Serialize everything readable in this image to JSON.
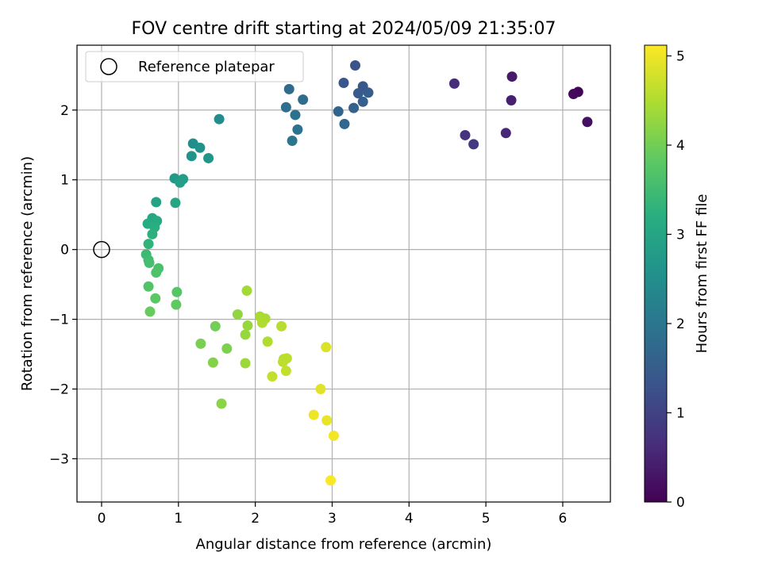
{
  "chart_data": {
    "type": "scatter",
    "title": "FOV centre drift starting at 2024/05/09 21:35:07",
    "xlabel": "Angular distance from reference (arcmin)",
    "ylabel": "Rotation from reference (arcmin)",
    "xlim": [
      -0.32,
      6.62
    ],
    "ylim": [
      -3.62,
      2.93
    ],
    "xticks": [
      "0",
      "1",
      "2",
      "3",
      "4",
      "5",
      "6"
    ],
    "yticks": [
      "−3",
      "−2",
      "−1",
      "0",
      "1",
      "2"
    ],
    "grid": true,
    "legend": {
      "placement": "top-left",
      "entries": [
        "Reference platepar"
      ]
    },
    "reference": {
      "x": 0,
      "y": 0
    },
    "colorbar": {
      "label": "Hours from first FF file",
      "range": [
        0,
        5.12
      ],
      "ticks": [
        "0",
        "1",
        "2",
        "3",
        "4",
        "5"
      ],
      "colormap": "viridis"
    },
    "points": [
      {
        "x": 6.2,
        "y": 2.26,
        "h": 0.05
      },
      {
        "x": 6.14,
        "y": 2.23,
        "h": 0.12
      },
      {
        "x": 6.32,
        "y": 1.83,
        "h": 0.22
      },
      {
        "x": 5.34,
        "y": 2.48,
        "h": 0.35
      },
      {
        "x": 5.33,
        "y": 2.14,
        "h": 0.45
      },
      {
        "x": 5.26,
        "y": 1.67,
        "h": 0.55
      },
      {
        "x": 4.59,
        "y": 2.38,
        "h": 0.65
      },
      {
        "x": 4.73,
        "y": 1.64,
        "h": 0.75
      },
      {
        "x": 4.84,
        "y": 1.51,
        "h": 0.85
      },
      {
        "x": 3.3,
        "y": 2.64,
        "h": 1.3
      },
      {
        "x": 3.15,
        "y": 2.39,
        "h": 1.35
      },
      {
        "x": 3.4,
        "y": 2.34,
        "h": 1.4
      },
      {
        "x": 3.34,
        "y": 2.24,
        "h": 1.45
      },
      {
        "x": 3.47,
        "y": 2.25,
        "h": 1.5
      },
      {
        "x": 3.4,
        "y": 2.12,
        "h": 1.55
      },
      {
        "x": 3.28,
        "y": 2.03,
        "h": 1.6
      },
      {
        "x": 3.08,
        "y": 1.98,
        "h": 1.65
      },
      {
        "x": 3.16,
        "y": 1.8,
        "h": 1.7
      },
      {
        "x": 2.44,
        "y": 2.3,
        "h": 1.75
      },
      {
        "x": 2.62,
        "y": 2.15,
        "h": 1.8
      },
      {
        "x": 2.4,
        "y": 2.04,
        "h": 1.85
      },
      {
        "x": 2.52,
        "y": 1.93,
        "h": 1.9
      },
      {
        "x": 2.55,
        "y": 1.72,
        "h": 1.95
      },
      {
        "x": 2.48,
        "y": 1.56,
        "h": 2.0
      },
      {
        "x": 1.53,
        "y": 1.87,
        "h": 2.45
      },
      {
        "x": 1.19,
        "y": 1.52,
        "h": 2.5
      },
      {
        "x": 1.28,
        "y": 1.46,
        "h": 2.55
      },
      {
        "x": 1.17,
        "y": 1.34,
        "h": 2.6
      },
      {
        "x": 1.39,
        "y": 1.31,
        "h": 2.65
      },
      {
        "x": 0.95,
        "y": 1.02,
        "h": 2.75
      },
      {
        "x": 1.06,
        "y": 1.01,
        "h": 2.8
      },
      {
        "x": 1.02,
        "y": 0.96,
        "h": 2.85
      },
      {
        "x": 0.71,
        "y": 0.68,
        "h": 2.95
      },
      {
        "x": 0.96,
        "y": 0.67,
        "h": 3.0
      },
      {
        "x": 0.66,
        "y": 0.45,
        "h": 3.05
      },
      {
        "x": 0.72,
        "y": 0.41,
        "h": 3.1
      },
      {
        "x": 0.6,
        "y": 0.37,
        "h": 3.15
      },
      {
        "x": 0.69,
        "y": 0.32,
        "h": 3.2
      },
      {
        "x": 0.66,
        "y": 0.22,
        "h": 3.25
      },
      {
        "x": 0.61,
        "y": 0.08,
        "h": 3.3
      },
      {
        "x": 0.58,
        "y": -0.07,
        "h": 3.45
      },
      {
        "x": 0.61,
        "y": -0.15,
        "h": 3.5
      },
      {
        "x": 0.62,
        "y": -0.19,
        "h": 3.55
      },
      {
        "x": 0.74,
        "y": -0.27,
        "h": 3.6
      },
      {
        "x": 0.71,
        "y": -0.33,
        "h": 3.65
      },
      {
        "x": 0.61,
        "y": -0.53,
        "h": 3.7
      },
      {
        "x": 0.98,
        "y": -0.61,
        "h": 3.75
      },
      {
        "x": 0.7,
        "y": -0.7,
        "h": 3.8
      },
      {
        "x": 0.97,
        "y": -0.79,
        "h": 3.85
      },
      {
        "x": 0.63,
        "y": -0.89,
        "h": 3.9
      },
      {
        "x": 1.48,
        "y": -1.1,
        "h": 4.0
      },
      {
        "x": 1.29,
        "y": -1.35,
        "h": 4.05
      },
      {
        "x": 1.63,
        "y": -1.42,
        "h": 4.1
      },
      {
        "x": 1.45,
        "y": -1.62,
        "h": 4.15
      },
      {
        "x": 1.56,
        "y": -2.21,
        "h": 4.2
      },
      {
        "x": 1.77,
        "y": -0.93,
        "h": 4.25
      },
      {
        "x": 1.87,
        "y": -1.22,
        "h": 4.3
      },
      {
        "x": 1.9,
        "y": -1.09,
        "h": 4.3
      },
      {
        "x": 1.87,
        "y": -1.63,
        "h": 4.35
      },
      {
        "x": 1.89,
        "y": -0.59,
        "h": 4.4
      },
      {
        "x": 2.06,
        "y": -0.96,
        "h": 4.45
      },
      {
        "x": 2.13,
        "y": -0.99,
        "h": 4.45
      },
      {
        "x": 2.09,
        "y": -1.05,
        "h": 4.5
      },
      {
        "x": 2.16,
        "y": -1.32,
        "h": 4.5
      },
      {
        "x": 2.34,
        "y": -1.1,
        "h": 4.55
      },
      {
        "x": 2.37,
        "y": -1.57,
        "h": 4.55
      },
      {
        "x": 2.41,
        "y": -1.56,
        "h": 4.6
      },
      {
        "x": 2.36,
        "y": -1.61,
        "h": 4.6
      },
      {
        "x": 2.4,
        "y": -1.74,
        "h": 4.65
      },
      {
        "x": 2.22,
        "y": -1.82,
        "h": 4.65
      },
      {
        "x": 2.92,
        "y": -1.4,
        "h": 4.85
      },
      {
        "x": 2.85,
        "y": -2.0,
        "h": 4.9
      },
      {
        "x": 2.76,
        "y": -2.37,
        "h": 5.0
      },
      {
        "x": 2.93,
        "y": -2.45,
        "h": 4.95
      },
      {
        "x": 3.02,
        "y": -2.67,
        "h": 5.05
      },
      {
        "x": 2.98,
        "y": -3.31,
        "h": 5.1
      }
    ]
  }
}
